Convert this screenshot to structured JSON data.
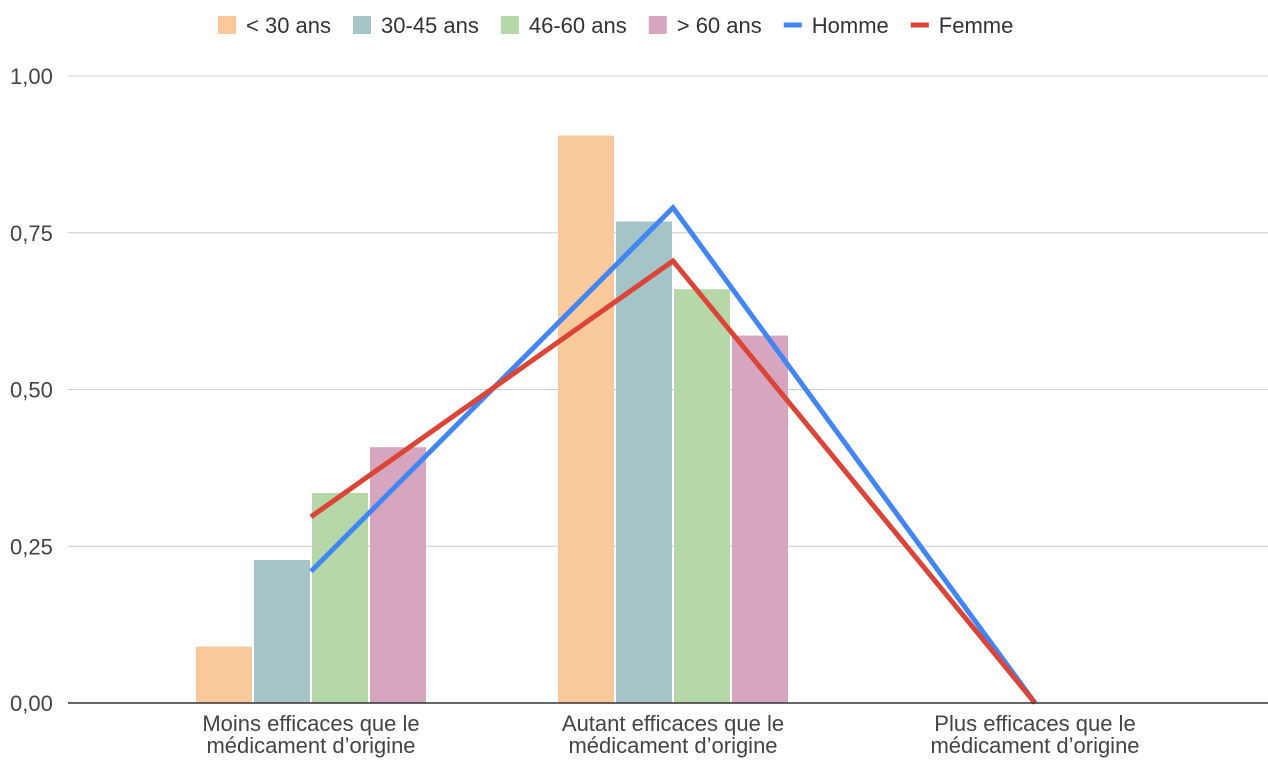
{
  "chart_data": {
    "type": "bar",
    "categories": [
      [
        "Moins efficaces que le",
        "médicament d’origine"
      ],
      [
        "Autant efficaces que le",
        "médicament d’origine"
      ],
      [
        "Plus efficaces que le",
        "médicament d’origine"
      ]
    ],
    "series": [
      {
        "name": "< 30 ans",
        "kind": "bar",
        "color": "#f9c99b",
        "values": [
          0.09,
          0.905,
          null
        ]
      },
      {
        "name": "30-45 ans",
        "kind": "bar",
        "color": "#a5c4c7",
        "values": [
          0.228,
          0.768,
          null
        ]
      },
      {
        "name": "46-60 ans",
        "kind": "bar",
        "color": "#b6d7a8",
        "values": [
          0.335,
          0.66,
          null
        ]
      },
      {
        "name": "> 60 ans",
        "kind": "bar",
        "color": "#d5a6bd",
        "values": [
          0.408,
          0.586,
          null
        ]
      },
      {
        "name": "Homme",
        "kind": "line",
        "color": "#4285f4",
        "values": [
          0.21,
          0.79,
          0.0
        ]
      },
      {
        "name": "Femme",
        "kind": "line",
        "color": "#db4437",
        "values": [
          0.297,
          0.705,
          0.0
        ]
      }
    ],
    "ylim": [
      0,
      1
    ],
    "yticks": [
      "0,00",
      "0,25",
      "0,50",
      "0,75",
      "1,00"
    ],
    "ytick_values": [
      0,
      0.25,
      0.5,
      0.75,
      1
    ],
    "grid": true,
    "legend_position": "top"
  }
}
